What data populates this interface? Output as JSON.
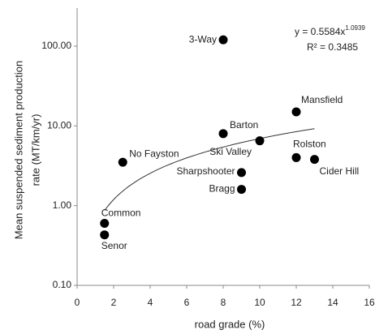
{
  "chart_data": {
    "type": "scatter",
    "x_label": "road grade (%)",
    "y_label": [
      "Mean  suspended sediment production",
      "rate (MT/km/yr)"
    ],
    "x": [
      8,
      12,
      8,
      10,
      12,
      13,
      2.5,
      9,
      9,
      1.5,
      1.5
    ],
    "values": [
      120,
      15,
      8,
      6.5,
      4,
      3.8,
      3.5,
      2.6,
      1.6,
      0.6,
      0.43
    ],
    "point_labels": [
      "3-Way",
      "Mansfield",
      "Barton",
      "Ski Valley",
      "Rolston",
      "Cider Hill",
      "No Fayston",
      "Sharpshooter",
      "Bragg",
      "Common",
      "Senor"
    ],
    "color": "#000000",
    "y_log": true,
    "xlim": [
      0,
      16
    ],
    "xticks": [
      0,
      2,
      4,
      6,
      8,
      10,
      12,
      14,
      16
    ],
    "ylim": [
      0.1,
      300
    ],
    "yticks": [
      {
        "value": 0.1,
        "label": "0.10"
      },
      {
        "value": 1,
        "label": "1.00"
      },
      {
        "value": 10,
        "label": "10.00"
      },
      {
        "value": 100,
        "label": "100.00"
      }
    ],
    "trendline": {
      "coefficient": 0.5584,
      "exponent": 1.0939,
      "r2": 0.3485,
      "color": "#333333"
    },
    "equation_label": {
      "text": "y = 0.5584x",
      "sup": "1.0939"
    },
    "r2_label": "R² = 0.3485"
  }
}
